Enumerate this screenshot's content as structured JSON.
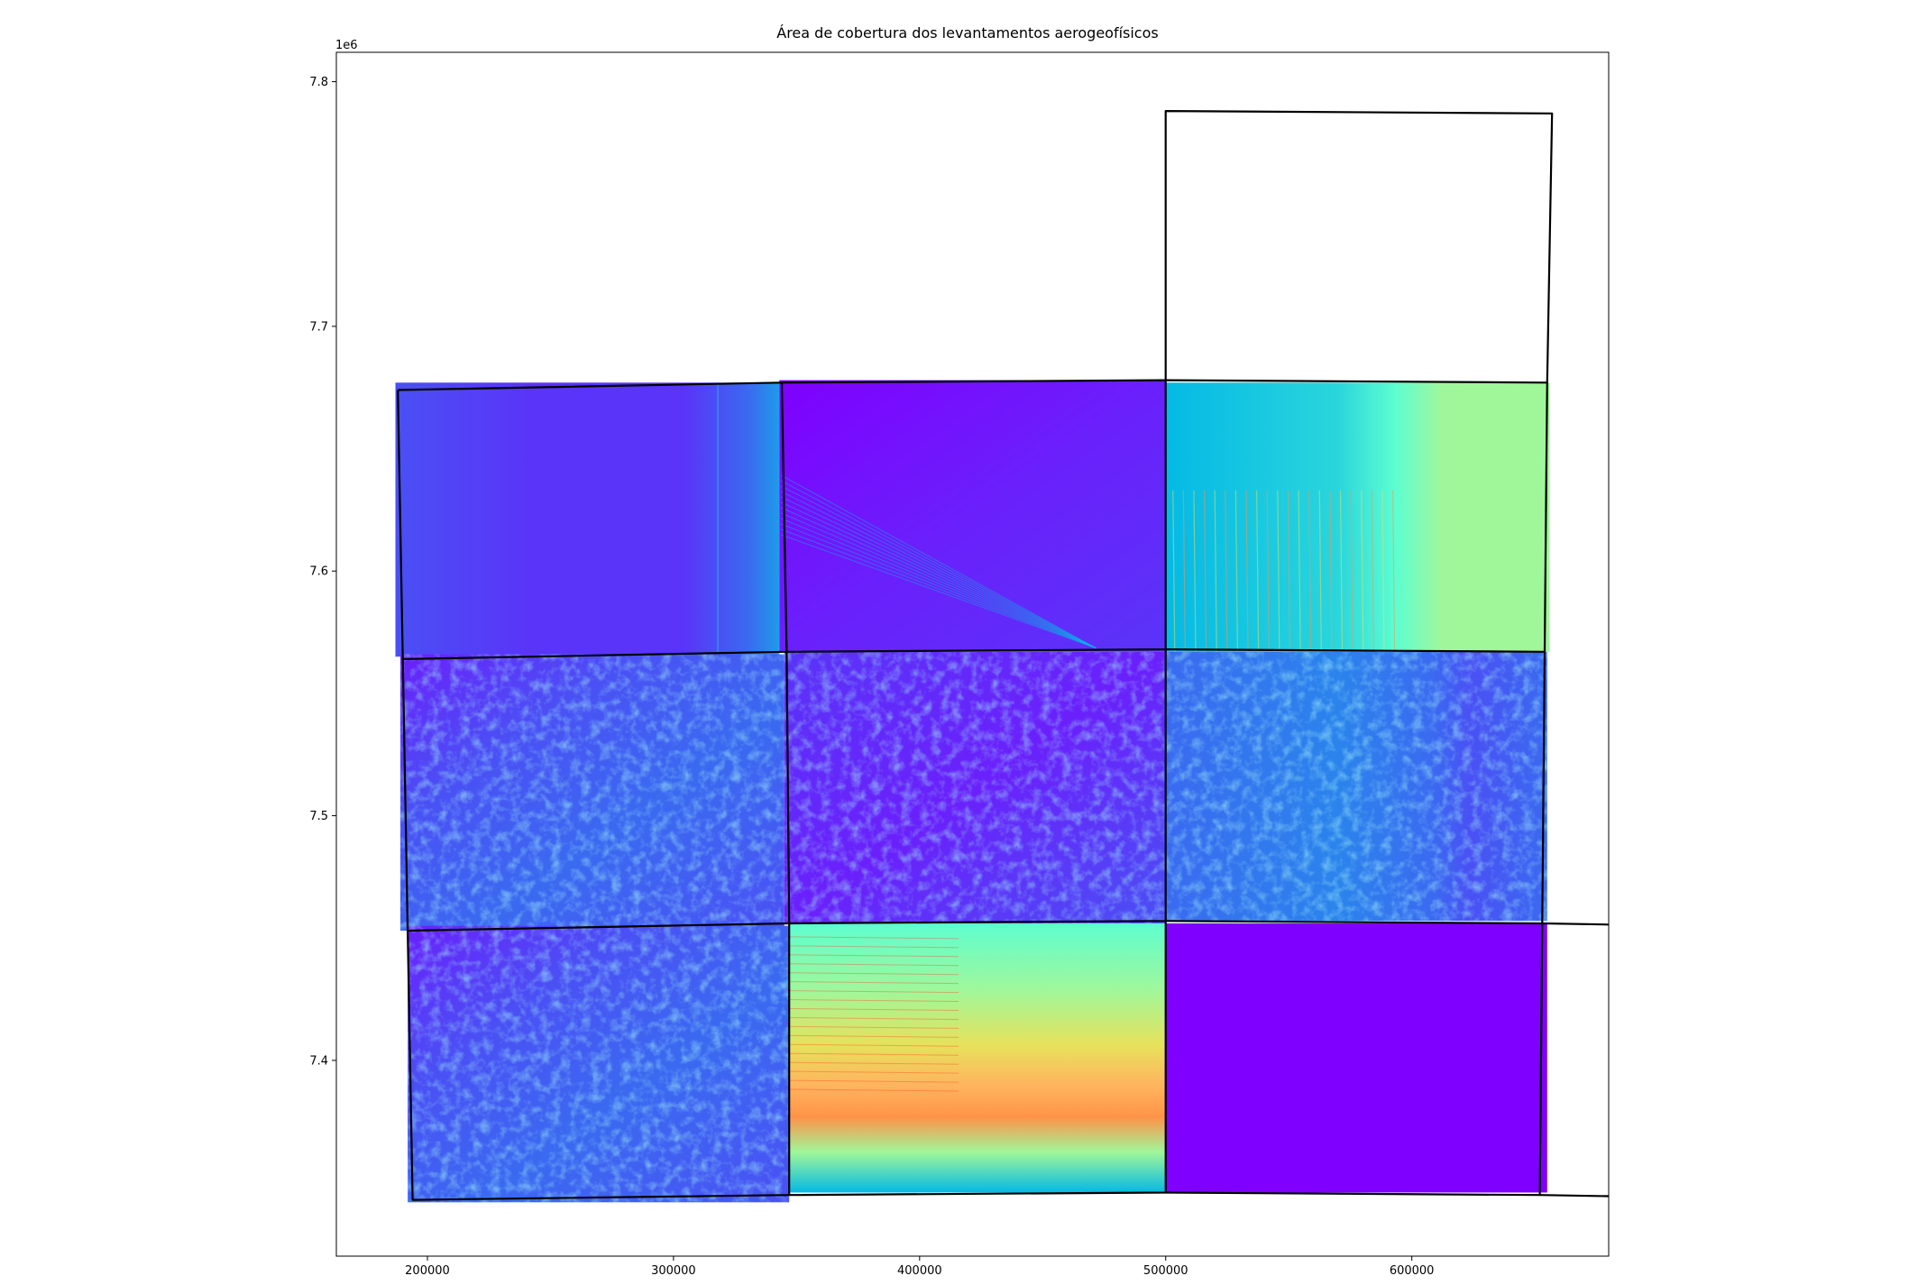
{
  "chart_data": {
    "type": "map",
    "title": "Área de cobertura dos levantamentos aerogeofísicos",
    "xlim": [
      163000,
      680000
    ],
    "ylim": [
      7320000,
      7812000
    ],
    "y_offset_label": "1e6",
    "x_ticks": [
      {
        "value": 200000,
        "label": "200000"
      },
      {
        "value": 300000,
        "label": "300000"
      },
      {
        "value": 400000,
        "label": "400000"
      },
      {
        "value": 500000,
        "label": "500000"
      },
      {
        "value": 600000,
        "label": "600000"
      }
    ],
    "y_ticks": [
      {
        "value": 7400000,
        "label": "7.4"
      },
      {
        "value": 7500000,
        "label": "7.5"
      },
      {
        "value": 7600000,
        "label": "7.6"
      },
      {
        "value": 7700000,
        "label": "7.7"
      },
      {
        "value": 7800000,
        "label": "7.8"
      }
    ],
    "colormap": "rainbow",
    "colors": {
      "boundary": "#000000",
      "violet": "#7f00ff",
      "blue_violet": "#5a34f8",
      "blue": "#3a6af0",
      "sky": "#04b9e5",
      "aqua": "#5efed0",
      "green": "#a0f79a",
      "yellow": "#e6e25c",
      "orange": "#ff9348",
      "red": "#ff3818"
    },
    "raster_tiles": [
      {
        "id": "NW",
        "x": [
          187000,
          343000
        ],
        "y": [
          7565000,
          7677000
        ],
        "fill": "blue_violet"
      },
      {
        "id": "N",
        "x": [
          343000,
          500000
        ],
        "y": [
          7567000,
          7678000
        ],
        "fill": "violet"
      },
      {
        "id": "NE",
        "x": [
          500000,
          656000
        ],
        "y": [
          7567000,
          7677000
        ],
        "fill": "sky_green"
      },
      {
        "id": "W",
        "x": [
          189000,
          345000
        ],
        "y": [
          7453000,
          7566000
        ],
        "fill": "noisy_blue"
      },
      {
        "id": "C",
        "x": [
          345000,
          500000
        ],
        "y": [
          7456000,
          7567000
        ],
        "fill": "noisy_violet"
      },
      {
        "id": "E",
        "x": [
          500000,
          655000
        ],
        "y": [
          7457000,
          7567000
        ],
        "fill": "noisy_aqua"
      },
      {
        "id": "SW",
        "x": [
          192000,
          347000
        ],
        "y": [
          7342000,
          7455000
        ],
        "fill": "noisy_blue"
      },
      {
        "id": "S",
        "x": [
          347000,
          500000
        ],
        "y": [
          7346000,
          7456000
        ],
        "fill": "gradient_warm"
      },
      {
        "id": "SE",
        "x": [
          500000,
          655000
        ],
        "y": [
          7346000,
          7456000
        ],
        "fill": "violet_flat"
      }
    ],
    "survey_boundaries": [
      [
        [
          188000,
          7674000
        ],
        [
          344000,
          7677000
        ],
        [
          346000,
          7567000
        ],
        [
          190000,
          7564000
        ],
        [
          188000,
          7674000
        ]
      ],
      [
        [
          344000,
          7677000
        ],
        [
          500000,
          7678000
        ],
        [
          500000,
          7568000
        ],
        [
          346000,
          7567000
        ]
      ],
      [
        [
          500000,
          7678000
        ],
        [
          655000,
          7677000
        ],
        [
          654000,
          7567000
        ],
        [
          500000,
          7568000
        ]
      ],
      [
        [
          500000,
          7678000
        ],
        [
          500000,
          7788000
        ],
        [
          657000,
          7787000
        ],
        [
          655000,
          7677000
        ]
      ],
      [
        [
          190000,
          7564000
        ],
        [
          192000,
          7453000
        ],
        [
          347000,
          7456000
        ],
        [
          346000,
          7567000
        ]
      ],
      [
        [
          347000,
          7456000
        ],
        [
          500000,
          7457000
        ],
        [
          500000,
          7568000
        ]
      ],
      [
        [
          500000,
          7457000
        ],
        [
          653000,
          7456000
        ],
        [
          654000,
          7567000
        ]
      ],
      [
        [
          192000,
          7453000
        ],
        [
          194000,
          7343000
        ],
        [
          347000,
          7345000
        ],
        [
          347000,
          7456000
        ]
      ],
      [
        [
          347000,
          7345000
        ],
        [
          500000,
          7346000
        ],
        [
          500000,
          7457000
        ]
      ],
      [
        [
          500000,
          7346000
        ],
        [
          652000,
          7345000
        ],
        [
          653000,
          7456000
        ]
      ],
      [
        [
          653000,
          7456000
        ],
        [
          680000,
          7455500
        ]
      ],
      [
        [
          652000,
          7345000
        ],
        [
          680000,
          7344500
        ]
      ]
    ]
  }
}
